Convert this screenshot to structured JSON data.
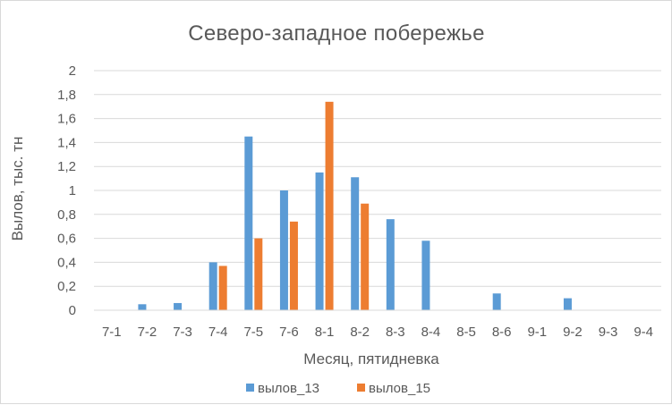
{
  "chart_data": {
    "type": "bar",
    "title": "Северо-западное побережье",
    "xlabel": "Месяц, пятидневка",
    "ylabel": "Вылов, тыс. тн",
    "ylim": [
      0,
      2
    ],
    "yticks": [
      "0",
      "0,2",
      "0,4",
      "0,6",
      "0,8",
      "1",
      "1,2",
      "1,4",
      "1,6",
      "1,8",
      "2"
    ],
    "grid": true,
    "legend_position": "bottom",
    "categories": [
      "7-1",
      "7-2",
      "7-3",
      "7-4",
      "7-5",
      "7-6",
      "8-1",
      "8-2",
      "8-3",
      "8-4",
      "8-5",
      "8-6",
      "9-1",
      "9-2",
      "9-3",
      "9-4"
    ],
    "series": [
      {
        "name": "вылов_13",
        "color": "#5b9bd5",
        "values": [
          0,
          0.05,
          0.06,
          0.4,
          1.45,
          1.0,
          1.15,
          1.11,
          0.76,
          0.58,
          0,
          0.14,
          0,
          0.1,
          0,
          0
        ]
      },
      {
        "name": "вылов_15",
        "color": "#ed7d31",
        "values": [
          0,
          0,
          0,
          0.37,
          0.6,
          0.74,
          1.74,
          0.89,
          0,
          0,
          0,
          0,
          0,
          0,
          0,
          0
        ]
      }
    ]
  }
}
